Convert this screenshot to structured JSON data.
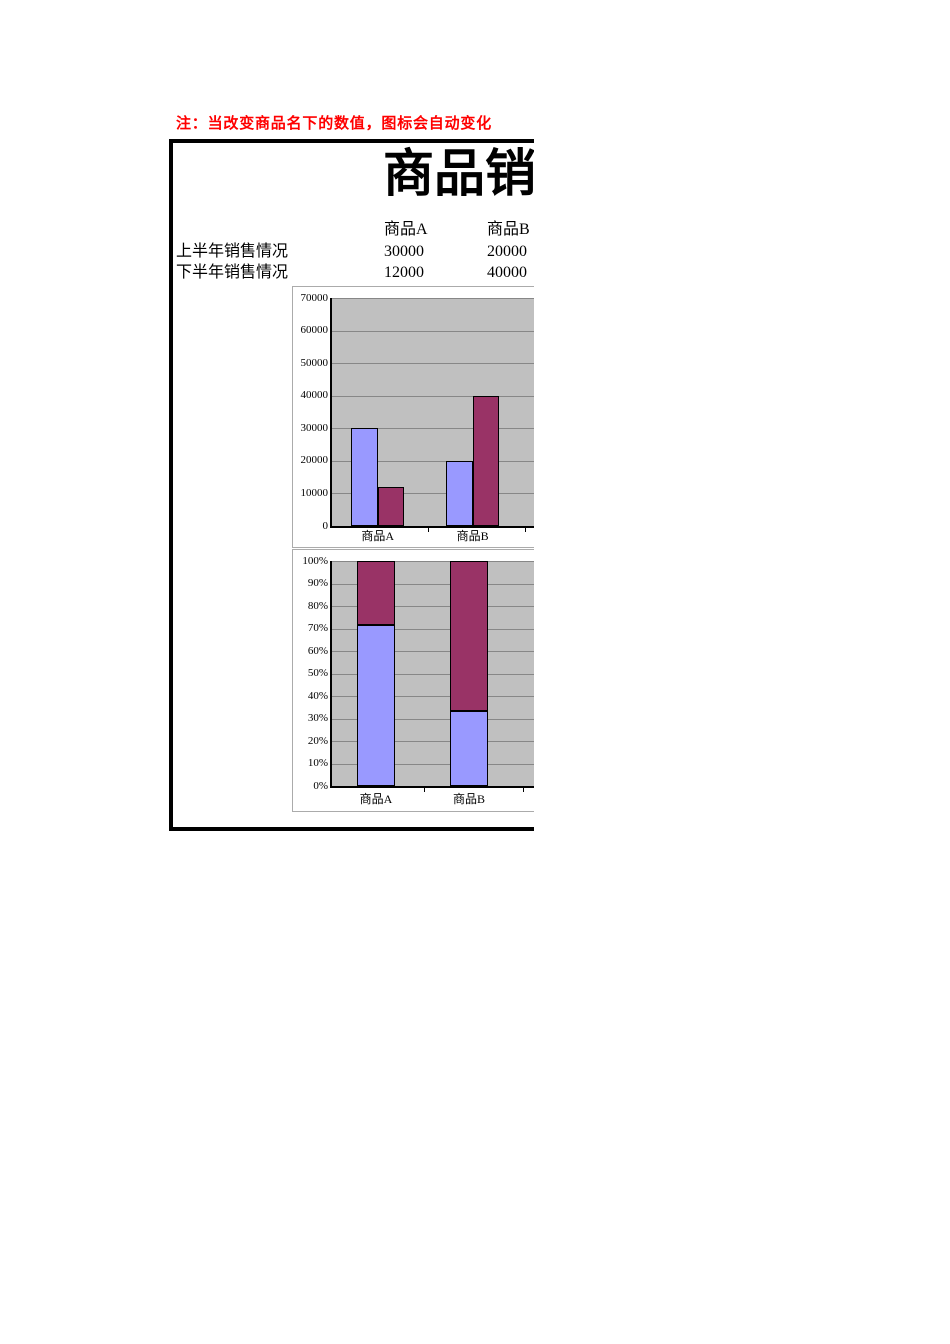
{
  "note": {
    "text": "注：当改变商品名下的数值，图标会自动变化",
    "color": "#FF0000"
  },
  "panel": {
    "title": "商品销售",
    "table": {
      "columns": [
        "商品A",
        "商品B"
      ],
      "rows": [
        {
          "label": "上半年销售情况",
          "values": [
            "30000",
            "20000"
          ]
        },
        {
          "label": "下半年销售情况",
          "values": [
            "12000",
            "40000"
          ]
        }
      ]
    }
  },
  "colors": {
    "series1_blue": "#9999FF",
    "series2_maroon": "#993366",
    "plot_background": "#C0C0C0",
    "gridline": "#878787",
    "axis": "#000000",
    "chart_border": "#ABABAB",
    "note_red": "#FF0000"
  },
  "chart_data": [
    {
      "type": "bar",
      "categories": [
        "商品A",
        "商品B"
      ],
      "series": [
        {
          "name": "上半年销售情况",
          "color": "#9999FF",
          "values": [
            30000,
            20000
          ]
        },
        {
          "name": "下半年销售情况",
          "color": "#993366",
          "values": [
            12000,
            40000
          ]
        }
      ],
      "ylim": [
        0,
        70000
      ],
      "ytick_step": 10000,
      "yticklabels": [
        "70000",
        "60000",
        "50000",
        "40000",
        "30000",
        "20000",
        "10000",
        "0"
      ],
      "xticklabels": [
        "商品A",
        "商品B"
      ],
      "grid": true,
      "plot_bg": "#C0C0C0",
      "title": "",
      "xlabel": "",
      "ylabel": ""
    },
    {
      "type": "stacked-bar-100",
      "categories": [
        "商品A",
        "商品B"
      ],
      "series": [
        {
          "name": "上半年销售情况",
          "color": "#9999FF",
          "values": [
            30000,
            20000
          ],
          "percent": [
            71.4,
            33.3
          ]
        },
        {
          "name": "下半年销售情况",
          "color": "#993366",
          "values": [
            12000,
            40000
          ],
          "percent": [
            28.6,
            66.7
          ]
        }
      ],
      "ylim": [
        0,
        100
      ],
      "ytick_step": 10,
      "yticklabels": [
        "100%",
        "90%",
        "80%",
        "70%",
        "60%",
        "50%",
        "40%",
        "30%",
        "20%",
        "10%",
        "0%"
      ],
      "xticklabels": [
        "商品A",
        "商品B"
      ],
      "grid": true,
      "plot_bg": "#C0C0C0",
      "title": "",
      "xlabel": "",
      "ylabel": ""
    }
  ]
}
